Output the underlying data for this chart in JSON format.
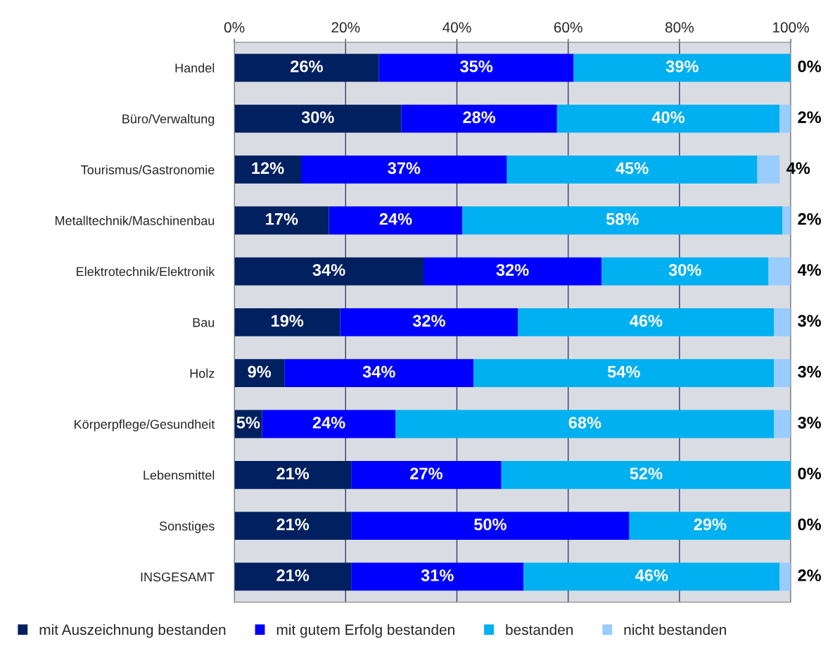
{
  "chart_data": {
    "type": "bar",
    "orientation": "horizontal",
    "stacked": true,
    "categories": [
      "Handel",
      "Büro/Verwaltung",
      "Tourismus/Gastronomie",
      "Metalltechnik/Maschinenbau",
      "Elektrotechnik/Elektronik",
      "Bau",
      "Holz",
      "Körperpflege/Gesundheit",
      "Lebensmittel",
      "Sonstiges",
      "INSGESAMT"
    ],
    "series": [
      {
        "name": "mit Auszeichnung bestanden",
        "color": "#002060",
        "values": [
          26,
          30,
          12,
          17,
          34,
          19,
          9,
          5,
          21,
          21,
          21
        ],
        "value_labels": [
          "26%",
          "30%",
          "12%",
          "17%",
          "34%",
          "19%",
          "9%",
          "5%",
          "21%",
          "21%",
          "21%"
        ]
      },
      {
        "name": "mit gutem Erfolg bestanden",
        "color": "#0000ff",
        "values": [
          35,
          28,
          37,
          24,
          32,
          32,
          34,
          24,
          27,
          50,
          31
        ],
        "value_labels": [
          "35%",
          "28%",
          "37%",
          "24%",
          "32%",
          "32%",
          "34%",
          "24%",
          "27%",
          "50%",
          "31%"
        ]
      },
      {
        "name": "bestanden",
        "color": "#00b0f0",
        "values": [
          39,
          40,
          45,
          57.5,
          30,
          46,
          54,
          68,
          52,
          29,
          46
        ],
        "value_labels": [
          "39%",
          "40%",
          "45%",
          "58%",
          "30%",
          "46%",
          "54%",
          "68%",
          "52%",
          "29%",
          "46%"
        ]
      },
      {
        "name": "nicht bestanden",
        "color": "#99ccff",
        "values": [
          0,
          2,
          4,
          1.5,
          4,
          3,
          3,
          3,
          0,
          0,
          2
        ],
        "value_labels": [
          "0%",
          "2%",
          "4%",
          "2%",
          "4%",
          "3%",
          "3%",
          "3%",
          "0%",
          "0%",
          "2%"
        ]
      }
    ],
    "xlim": [
      0,
      100
    ],
    "xticks": [
      {
        "value": 0,
        "label": "0%"
      },
      {
        "value": 20,
        "label": "20%"
      },
      {
        "value": 40,
        "label": "40%"
      },
      {
        "value": 60,
        "label": "60%"
      },
      {
        "value": 80,
        "label": "80%"
      },
      {
        "value": 100,
        "label": "100%"
      }
    ],
    "grid": "x",
    "legend": "bottom"
  }
}
